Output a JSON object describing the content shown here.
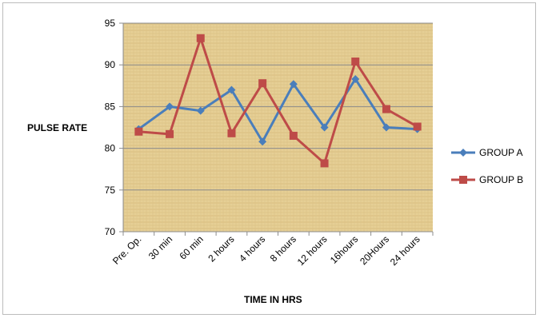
{
  "chart_data": {
    "type": "line",
    "title": "",
    "xlabel": "TIME IN HRS",
    "ylabel": "PULSE RATE",
    "categories": [
      "Pre. Op.",
      "30 min",
      "60 min",
      "2 hours",
      "4 hours",
      "8 hours",
      "12 hours",
      "16hours",
      "20Hours",
      "24 hours"
    ],
    "ylim": [
      70,
      95
    ],
    "yticks": [
      70,
      75,
      80,
      85,
      90,
      95
    ],
    "grid": true,
    "legend_position": "right",
    "series": [
      {
        "name": "GROUP A",
        "color": "#4a7ebb",
        "marker": "diamond",
        "values": [
          82.3,
          85.0,
          84.5,
          87.0,
          80.8,
          87.7,
          82.5,
          88.3,
          82.5,
          82.3
        ]
      },
      {
        "name": "GROUP B",
        "color": "#be4b48",
        "marker": "square",
        "values": [
          82.0,
          81.7,
          93.2,
          81.8,
          87.8,
          81.5,
          78.2,
          90.4,
          84.7,
          82.6
        ]
      }
    ]
  }
}
